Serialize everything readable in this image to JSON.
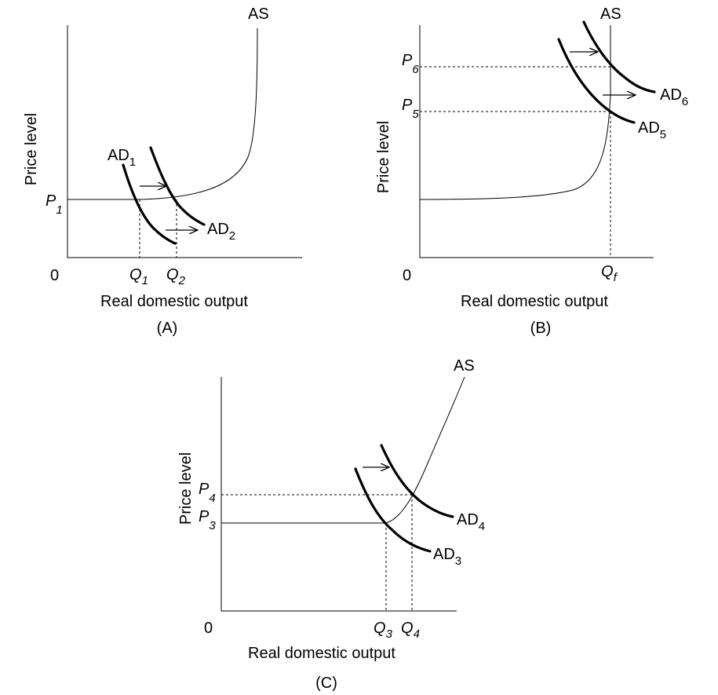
{
  "panels": [
    {
      "id": "A",
      "caption": "(A)",
      "y_label": "Price level",
      "x_label": "Real domestic output",
      "origin": "0",
      "as_label": "AS",
      "price_labels": [
        {
          "letter": "P",
          "sub": "1"
        }
      ],
      "quantity_labels": [
        {
          "letter": "Q",
          "sub": "1"
        },
        {
          "letter": "Q",
          "sub": "2"
        }
      ],
      "ad_labels": [
        {
          "text": "AD",
          "sub": "1"
        },
        {
          "text": "AD",
          "sub": "2"
        }
      ]
    },
    {
      "id": "B",
      "caption": "(B)",
      "y_label": "Price level",
      "x_label": "Real domestic output",
      "origin": "0",
      "as_label": "AS",
      "price_labels": [
        {
          "letter": "P",
          "sub": "6"
        },
        {
          "letter": "P",
          "sub": "5"
        }
      ],
      "quantity_labels": [
        {
          "letter": "Q",
          "sub": "f"
        }
      ],
      "ad_labels": [
        {
          "text": "AD",
          "sub": "6"
        },
        {
          "text": "AD",
          "sub": "5"
        }
      ]
    },
    {
      "id": "C",
      "caption": "(C)",
      "y_label": "Price level",
      "x_label": "Real domestic output",
      "origin": "0",
      "as_label": "AS",
      "price_labels": [
        {
          "letter": "P",
          "sub": "4"
        },
        {
          "letter": "P",
          "sub": "3"
        }
      ],
      "quantity_labels": [
        {
          "letter": "Q",
          "sub": "3"
        },
        {
          "letter": "Q",
          "sub": "4"
        }
      ],
      "ad_labels": [
        {
          "text": "AD",
          "sub": "4"
        },
        {
          "text": "AD",
          "sub": "3"
        }
      ]
    }
  ]
}
